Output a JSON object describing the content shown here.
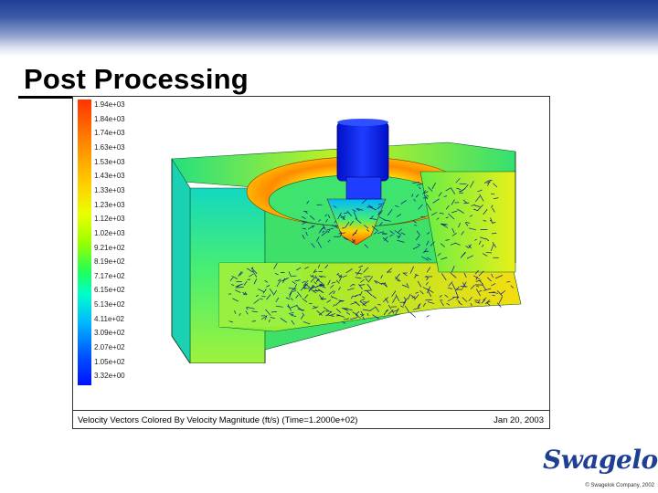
{
  "slide": {
    "title": "Post Processing",
    "copyright": "© Swagelok Company, 2002",
    "brand": "Swagelok"
  },
  "figure": {
    "caption": "Velocity Vectors Colored By Velocity Magnitude (ft/s)  (Time=1.2000e+02)",
    "date": "Jan 20, 2003",
    "colorbar_labels": [
      "1.94e+03",
      "1.84e+03",
      "1.74e+03",
      "1.63e+03",
      "1.53e+03",
      "1.43e+03",
      "1.33e+03",
      "1.23e+03",
      "1.12e+03",
      "1.02e+03",
      "9.21e+02",
      "8.19e+02",
      "7.17e+02",
      "6.15e+02",
      "5.13e+02",
      "4.11e+02",
      "3.09e+02",
      "2.07e+02",
      "1.05e+02",
      "3.32e+00"
    ]
  },
  "colors": {
    "banner": "#1f3f94",
    "brand": "#1f3f94"
  }
}
